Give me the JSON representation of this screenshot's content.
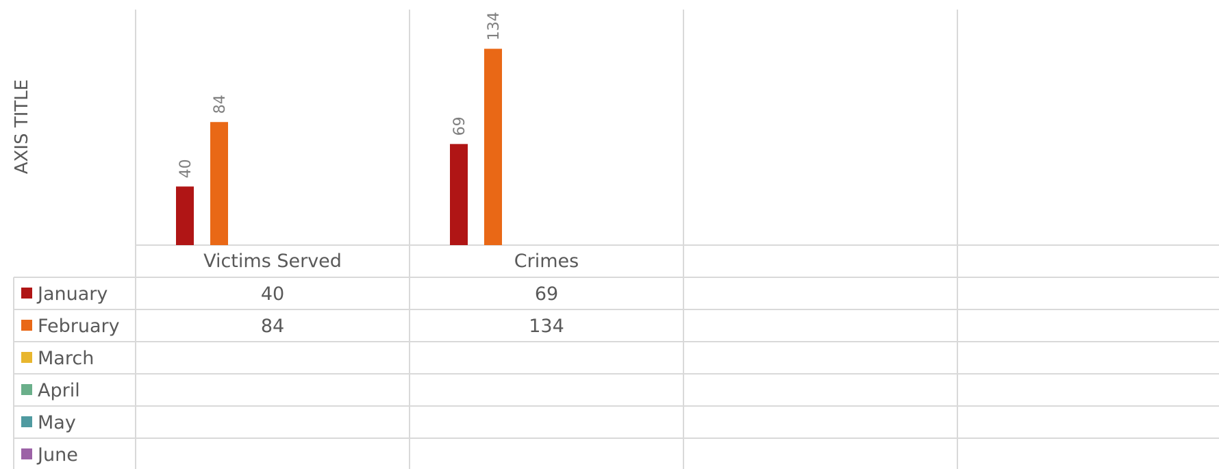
{
  "chart_data": {
    "type": "bar",
    "ylabel": "AXIS TITLE",
    "categories": [
      "Victims Served",
      "Crimes",
      "",
      "",
      ""
    ],
    "series": [
      {
        "name": "January",
        "values": [
          40,
          69,
          null,
          null,
          null
        ],
        "color": "#b01515"
      },
      {
        "name": "February",
        "values": [
          84,
          134,
          null,
          null,
          null
        ],
        "color": "#e96816"
      },
      {
        "name": "March",
        "values": [
          null,
          null,
          null,
          null,
          null
        ],
        "color": "#e8b62e"
      },
      {
        "name": "April",
        "values": [
          null,
          null,
          null,
          null,
          null
        ],
        "color": "#6aaf8a"
      },
      {
        "name": "May",
        "values": [
          null,
          null,
          null,
          null,
          null
        ],
        "color": "#4f9aa0"
      },
      {
        "name": "June",
        "values": [
          null,
          null,
          null,
          null,
          null
        ],
        "color": "#9c62a6"
      }
    ],
    "ylim": [
      0,
      160
    ],
    "data_table": true,
    "gridlines": "vertical category separators"
  }
}
